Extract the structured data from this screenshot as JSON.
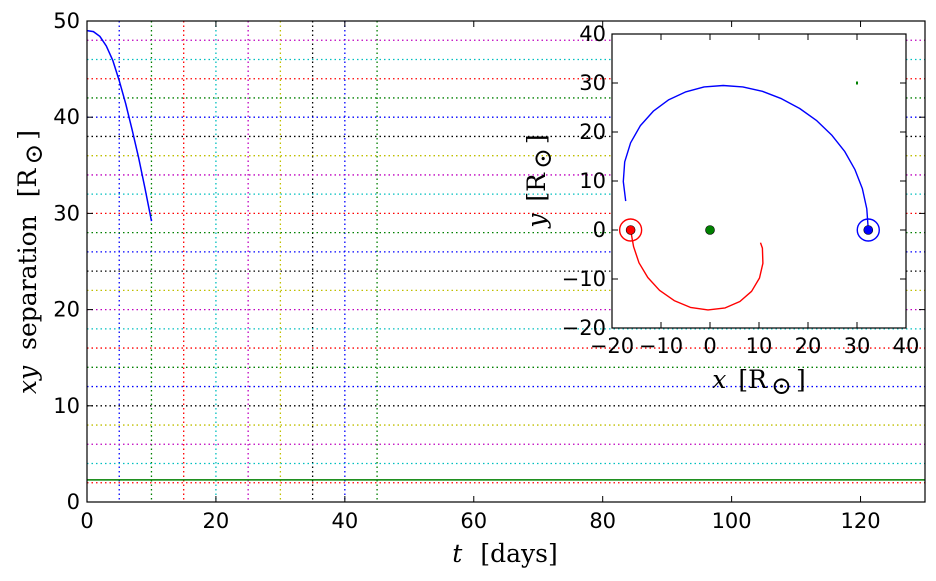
{
  "chart_data": [
    {
      "type": "line",
      "xlabel_var": "t",
      "xlabel_unit": "[days]",
      "ylabel_var": "xy",
      "ylabel_word": "separation",
      "ylabel_unit": "[R",
      "ylabel_sub": "⊙",
      "ylabel_close": "]",
      "xlim": [
        0,
        130
      ],
      "ylim": [
        0,
        50
      ],
      "xticks": [
        "0",
        "20",
        "40",
        "60",
        "80",
        "100",
        "120"
      ],
      "yticks": [
        "0",
        "10",
        "20",
        "30",
        "40",
        "50"
      ],
      "grid": "dotted",
      "series": [
        {
          "color": "#0000ff",
          "x": [
            0,
            1,
            2,
            3,
            4,
            5,
            6,
            7,
            8,
            9,
            10
          ],
          "y": [
            49.0,
            48.9,
            48.4,
            47.4,
            45.9,
            43.8,
            41.4,
            38.7,
            35.8,
            32.6,
            29.2
          ]
        },
        {
          "color": "#008000",
          "x": [
            0,
            130
          ],
          "y": [
            2.3,
            2.3
          ]
        }
      ],
      "vlines": [
        {
          "x": 5,
          "color": "#0000ff"
        },
        {
          "x": 10,
          "color": "#008000"
        },
        {
          "x": 15,
          "color": "#ff0000"
        },
        {
          "x": 20,
          "color": "#00bfbf"
        },
        {
          "x": 25,
          "color": "#bf00bf"
        },
        {
          "x": 30,
          "color": "#bfbf00"
        },
        {
          "x": 35,
          "color": "#000000"
        },
        {
          "x": 40,
          "color": "#0000ff"
        },
        {
          "x": 45,
          "color": "#008000"
        }
      ],
      "hlines": [
        {
          "y": 2,
          "color": "#ff0000"
        },
        {
          "y": 4,
          "color": "#00bfbf"
        },
        {
          "y": 6,
          "color": "#bf00bf"
        },
        {
          "y": 8,
          "color": "#bfbf00"
        },
        {
          "y": 10,
          "color": "#000000"
        },
        {
          "y": 12,
          "color": "#0000ff"
        },
        {
          "y": 14,
          "color": "#008000"
        },
        {
          "y": 16,
          "color": "#ff0000"
        },
        {
          "y": 18,
          "color": "#00bfbf"
        },
        {
          "y": 20,
          "color": "#bf00bf"
        },
        {
          "y": 22,
          "color": "#bfbf00"
        },
        {
          "y": 24,
          "color": "#000000"
        },
        {
          "y": 26,
          "color": "#0000ff"
        },
        {
          "y": 28,
          "color": "#008000"
        },
        {
          "y": 30,
          "color": "#ff0000"
        },
        {
          "y": 32,
          "color": "#00bfbf"
        },
        {
          "y": 34,
          "color": "#bf00bf"
        },
        {
          "y": 36,
          "color": "#bfbf00"
        },
        {
          "y": 38,
          "color": "#000000"
        },
        {
          "y": 40,
          "color": "#0000ff"
        },
        {
          "y": 42,
          "color": "#008000"
        },
        {
          "y": 44,
          "color": "#ff0000"
        },
        {
          "y": 46,
          "color": "#00bfbf"
        },
        {
          "y": 48,
          "color": "#bf00bf"
        }
      ]
    },
    {
      "type": "line",
      "inset": true,
      "xlabel_var": "x",
      "xlabel_unit": "[R",
      "xlabel_sub": "⊙",
      "xlabel_close": "]",
      "ylabel_var": "y",
      "ylabel_unit": "[R",
      "ylabel_sub": "⊙",
      "ylabel_close": "]",
      "xlim": [
        -20,
        40
      ],
      "ylim": [
        -20,
        40
      ],
      "xticks": [
        "−20",
        "−10",
        "0",
        "10",
        "20",
        "30",
        "40"
      ],
      "yticks": [
        "−20",
        "−10",
        "0",
        "10",
        "20",
        "30",
        "40"
      ],
      "series": [
        {
          "color": "#0000ff",
          "x": [
            32.3,
            32.0,
            31.1,
            29.6,
            27.5,
            24.9,
            21.8,
            18.3,
            14.6,
            10.7,
            6.7,
            2.7,
            -1.2,
            -4.9,
            -8.4,
            -11.5,
            -14.2,
            -16.2,
            -17.4,
            -17.7,
            -17.2
          ],
          "y": [
            0.0,
            4.3,
            8.4,
            12.3,
            16.0,
            19.3,
            22.3,
            24.8,
            26.8,
            28.3,
            29.2,
            29.5,
            29.2,
            28.2,
            26.6,
            24.3,
            21.3,
            17.8,
            13.9,
            9.9,
            5.9
          ]
        },
        {
          "color": "#ff0000",
          "x": [
            -16.2,
            -15.6,
            -14.5,
            -12.7,
            -10.3,
            -7.3,
            -4.0,
            -0.4,
            3.1,
            6.1,
            8.5,
            10.1,
            10.8,
            10.7,
            10.3
          ],
          "y": [
            0.0,
            -3.4,
            -6.7,
            -9.7,
            -12.3,
            -14.4,
            -15.8,
            -16.3,
            -15.9,
            -14.6,
            -12.5,
            -9.8,
            -6.8,
            -3.7,
            -2.6
          ]
        }
      ],
      "points": [
        {
          "x": -16.2,
          "y": 0,
          "color": "#ff0000",
          "ring": true
        },
        {
          "x": 0,
          "y": 0,
          "color": "#008000",
          "ring": false
        },
        {
          "x": 32.3,
          "y": 0,
          "color": "#0000ff",
          "ring": true
        }
      ],
      "marker": {
        "x": 30,
        "y": 30,
        "color": "#008000"
      }
    }
  ]
}
